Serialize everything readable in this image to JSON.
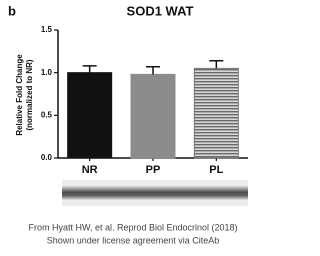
{
  "chart_data": {
    "type": "bar",
    "panel_label": "b",
    "title": "SOD1 WAT",
    "ylabel": [
      "Relative Fold Change",
      "(normalized to NR)"
    ],
    "categories": [
      "NR",
      "PP",
      "PL"
    ],
    "values": [
      1.0,
      0.98,
      1.05
    ],
    "errors": [
      0.08,
      0.09,
      0.09
    ],
    "colors": [
      "#111111",
      "#8c8c8c",
      "#a0a0a0"
    ],
    "hatch": [
      "none",
      "none",
      "horizontal"
    ],
    "ylim": [
      0,
      1.5
    ],
    "yticks": [
      {
        "value": 0,
        "label": "0.0"
      },
      {
        "value": 0.5,
        "label": "0.5"
      },
      {
        "value": 1,
        "label": "1.0"
      },
      {
        "value": 1.5,
        "label": "1.5"
      }
    ]
  },
  "caption": [
    "From Hyatt HW, et al. Reprod Biol Endocrinol (2018)",
    "Shown under license agreement via CiteAb"
  ]
}
